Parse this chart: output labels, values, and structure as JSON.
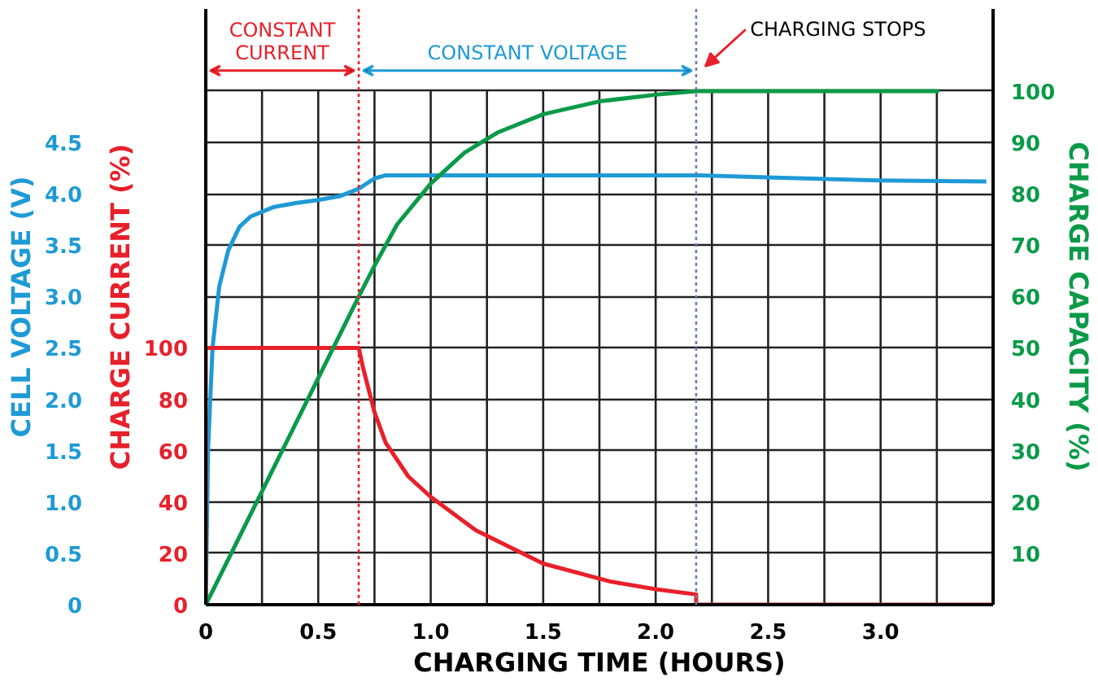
{
  "chart_data": {
    "type": "line",
    "xlabel": "CHARGING TIME (HOURS)",
    "ylabel": "CELL VOLTAGE (V)",
    "y2label": "CHARGE CURRENT (%)",
    "y3label": "CHARGE CAPACITY (%)",
    "xlim": [
      0,
      3.5
    ],
    "xticks": [
      0,
      {
        "value": 0.25,
        "label": null
      },
      0.5,
      {
        "value": 0.75,
        "label": null
      },
      {
        "value": 1,
        "label": "1.0"
      },
      {
        "value": 1.25,
        "label": null
      },
      1.5,
      {
        "value": 1.75,
        "label": null
      },
      {
        "value": 2,
        "label": "2.0"
      },
      {
        "value": 2.25,
        "label": null
      },
      2.5,
      {
        "value": 2.75,
        "label": null
      },
      {
        "value": 3,
        "label": "3.0"
      },
      {
        "value": 3.25,
        "label": null
      },
      {
        "value": 3.5,
        "label": null
      }
    ],
    "ylim": [
      0,
      5.8
    ],
    "yticks": [
      0,
      0.5,
      {
        "value": 1,
        "label": "1.0"
      },
      1.5,
      {
        "value": 2,
        "label": "2.0"
      },
      2.5,
      {
        "value": 3,
        "label": "3.0"
      },
      3.5,
      {
        "value": 4,
        "label": "4.0"
      },
      4.5,
      {
        "value": 5,
        "label": null
      }
    ],
    "y2lim": [
      0,
      232
    ],
    "y2ticks": [
      0,
      20,
      40,
      60,
      80,
      100
    ],
    "y3lim": [
      0,
      116
    ],
    "y3ticks": [
      10,
      20,
      30,
      40,
      50,
      60,
      70,
      80,
      90,
      100
    ],
    "grid": true,
    "marker": "none",
    "line_style": "solid",
    "series": [
      {
        "color": "#1e9ad6",
        "axis": "y",
        "x": [
          0,
          0.01,
          0.03,
          0.06,
          0.1,
          0.15,
          0.2,
          0.3,
          0.4,
          0.5,
          0.6,
          0.68,
          0.75,
          0.8,
          1.0,
          1.5,
          2.0,
          2.2,
          2.5,
          3.0,
          3.47
        ],
        "values": [
          0,
          1.5,
          2.5,
          3.1,
          3.45,
          3.68,
          3.78,
          3.87,
          3.91,
          3.94,
          3.98,
          4.05,
          4.15,
          4.18,
          4.18,
          4.18,
          4.18,
          4.18,
          4.16,
          4.13,
          4.12
        ]
      },
      {
        "color": "#e8202a",
        "axis": "y2",
        "x": [
          0,
          0,
          0.68,
          0.7,
          0.75,
          0.8,
          0.9,
          1.0,
          1.2,
          1.5,
          1.8,
          2.0,
          2.18,
          2.18,
          3.5
        ],
        "values": [
          0,
          100,
          100,
          92,
          75,
          63,
          50,
          42,
          29,
          16,
          9,
          6,
          4,
          0,
          0
        ]
      },
      {
        "color": "#0a9a48",
        "axis": "y3",
        "x": [
          0,
          0.68,
          0.75,
          0.85,
          1.0,
          1.15,
          1.3,
          1.5,
          1.75,
          2.0,
          2.18,
          3.26
        ],
        "values": [
          0,
          60,
          66,
          74,
          82,
          88,
          92,
          95.5,
          98,
          99.3,
          100,
          100
        ]
      }
    ],
    "ref_lines": [
      {
        "axis": "x",
        "value": 0.68,
        "color": "#e8202a",
        "line_style": "dotted"
      },
      {
        "axis": "x",
        "value": 2.18,
        "label": "CHARGING STOPS",
        "color": "#6a7fa8",
        "line_style": "dotted"
      }
    ],
    "annotations": [
      "CONSTANT CURRENT",
      "CONSTANT VOLTAGE"
    ]
  }
}
